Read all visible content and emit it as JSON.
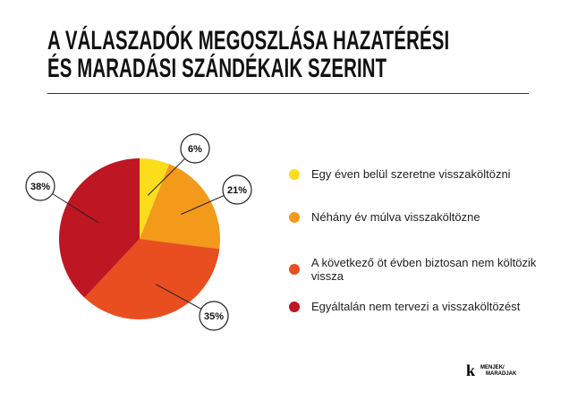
{
  "title_lines": [
    "A VÁLASZADÓK MEGOSZLÁSA HAZATÉRÉSI",
    "ÉS MARADÁSI SZÁNDÉKAIK SZERINT"
  ],
  "chart_data": {
    "type": "pie",
    "title": "A VÁLASZADÓK MEGOSZLÁSA HAZATÉRÉSI ÉS MARADÁSI SZÁNDÉKAIK SZERINT",
    "legend_position": "right",
    "slices": [
      {
        "name": "Egy éven belül szeretne visszaköltözni",
        "value": 6,
        "label": "6%",
        "color": "#FCDD1C"
      },
      {
        "name": "Néhány év múlva visszaköltözne",
        "value": 21,
        "label": "21%",
        "color": "#F39A1B"
      },
      {
        "name": "A következő öt évben biztosan nem költözik vissza",
        "value": 35,
        "label": "35%",
        "color": "#E84E1F"
      },
      {
        "name": "Egyáltalán nem tervezi a visszaköltözést",
        "value": 38,
        "label": "38%",
        "color": "#BE1622"
      }
    ]
  },
  "logo": {
    "mark": "k",
    "line1": "MENJEK/",
    "line2": "MARADJAK"
  }
}
